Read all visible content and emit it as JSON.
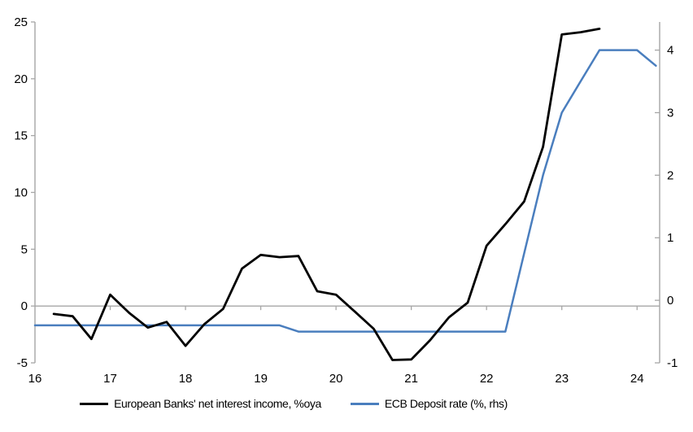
{
  "chart_data": {
    "type": "line",
    "title": "",
    "grid": "zero-line-only",
    "legend_position": "bottom",
    "x_axis": {
      "min": 16,
      "max": 24.3,
      "ticks": [
        16,
        17,
        18,
        19,
        20,
        21,
        22,
        23,
        24
      ]
    },
    "left_axis": {
      "min": -5,
      "max": 25,
      "ticks": [
        -5,
        0,
        5,
        10,
        15,
        20,
        25
      ]
    },
    "right_axis": {
      "min": -1,
      "max": 4.45,
      "ticks": [
        -1,
        0,
        1,
        2,
        3,
        4
      ]
    },
    "series": [
      {
        "name": "European Banks' net interest income, %oya",
        "axis": "left",
        "color": "#000000",
        "x": [
          16.25,
          16.5,
          16.75,
          17.0,
          17.25,
          17.5,
          17.75,
          18.0,
          18.25,
          18.5,
          18.75,
          19.0,
          19.25,
          19.5,
          19.75,
          20.0,
          20.25,
          20.5,
          20.75,
          21.0,
          21.25,
          21.5,
          21.75,
          22.0,
          22.25,
          22.5,
          22.75,
          23.0,
          23.25,
          23.5
        ],
        "values": [
          -0.7,
          -0.9,
          -2.9,
          1.0,
          -0.6,
          -1.9,
          -1.4,
          -3.5,
          -1.6,
          -0.25,
          3.3,
          4.5,
          4.3,
          4.4,
          1.3,
          1.0,
          -0.5,
          -2.0,
          -4.75,
          -4.7,
          -3.0,
          -1.0,
          0.3,
          5.3,
          7.2,
          9.2,
          14.0,
          23.9,
          24.1,
          24.4
        ]
      },
      {
        "name": "ECB Deposit rate (%, rhs)",
        "axis": "right",
        "color": "#4a7ebe",
        "x": [
          16.0,
          16.25,
          16.5,
          16.75,
          17.0,
          17.25,
          17.5,
          17.75,
          18.0,
          18.25,
          18.5,
          18.75,
          19.0,
          19.25,
          19.5,
          19.75,
          20.0,
          20.25,
          20.5,
          20.75,
          21.0,
          21.25,
          21.5,
          21.75,
          22.0,
          22.25,
          22.5,
          22.75,
          23.0,
          23.25,
          23.5,
          23.75,
          24.0,
          24.25
        ],
        "values": [
          -0.4,
          -0.4,
          -0.4,
          -0.4,
          -0.4,
          -0.4,
          -0.4,
          -0.4,
          -0.4,
          -0.4,
          -0.4,
          -0.4,
          -0.4,
          -0.4,
          -0.5,
          -0.5,
          -0.5,
          -0.5,
          -0.5,
          -0.5,
          -0.5,
          -0.5,
          -0.5,
          -0.5,
          -0.5,
          -0.5,
          0.75,
          2.0,
          3.0,
          3.5,
          4.0,
          4.0,
          4.0,
          3.75
        ]
      }
    ]
  },
  "colors": {
    "axis_gray": "#a6a6a6",
    "background": "#ffffff"
  }
}
